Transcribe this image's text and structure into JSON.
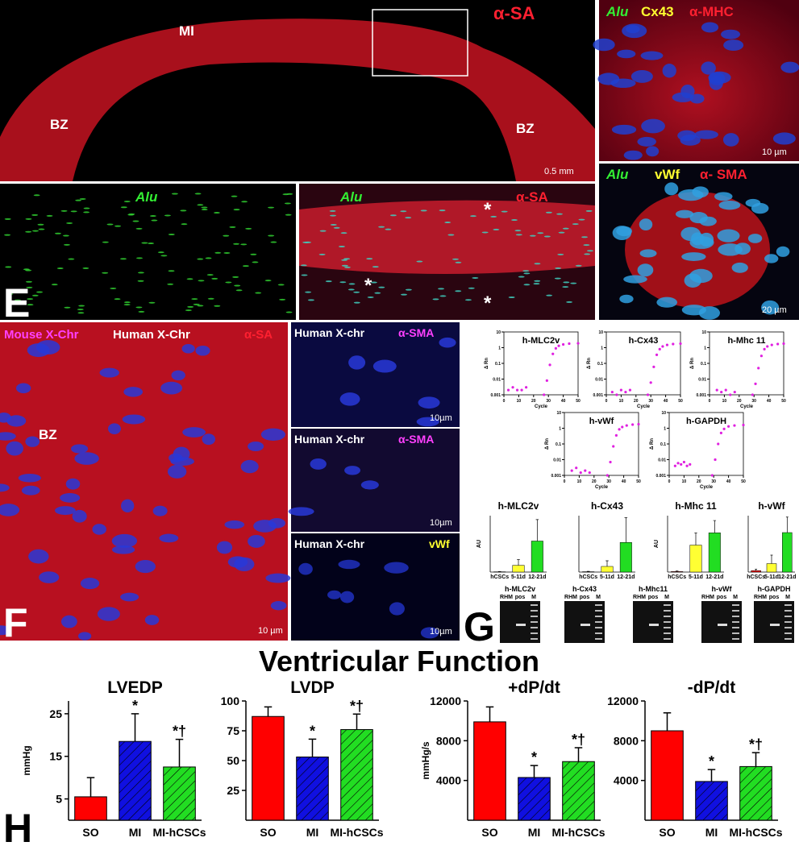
{
  "panel_labels": [
    "E",
    "F",
    "G",
    "H"
  ],
  "micrographs": {
    "overview": {
      "labels": [
        "MI",
        "BZ",
        "BZ"
      ],
      "stain": "α-SA",
      "scale": "0.5 mm"
    },
    "cx43": {
      "stains": [
        "Alu",
        "Cx43",
        "α-MHC"
      ],
      "scale": "10 µm"
    },
    "vwf": {
      "stains": [
        "Alu",
        "vWf",
        "α- SMA"
      ],
      "scale": "20 µm"
    },
    "alu": {
      "stains": [
        "Alu"
      ]
    },
    "alu_sa": {
      "stains": [
        "Alu",
        "α-SA"
      ],
      "asterisk": "*"
    },
    "xchr": {
      "stains": [
        "Mouse X-Chr",
        "Human X-Chr",
        "α-SA"
      ],
      "labels": [
        "BZ"
      ],
      "scale": "10 µm"
    },
    "sma1": {
      "stains": [
        "Human X-chr",
        "α-SMA"
      ],
      "scale": "10µm"
    },
    "sma2": {
      "stains": [
        "Human X-chr",
        "α-SMA"
      ],
      "scale": "10µm"
    },
    "vwf2": {
      "stains": [
        "Human X-chr",
        "vWf"
      ],
      "scale": "10µm"
    }
  },
  "gels": [
    {
      "title": "h-MLC2v",
      "lanes": [
        "RHM",
        "pos",
        "M"
      ]
    },
    {
      "title": "h-Cx43",
      "lanes": [
        "RHM",
        "pos",
        "M"
      ]
    },
    {
      "title": "h-Mhc11",
      "lanes": [
        "RHM",
        "pos",
        "M"
      ]
    },
    {
      "title": "h-vWf",
      "lanes": [
        "RHM",
        "pos",
        "M"
      ]
    },
    {
      "title": "h-GAPDH",
      "lanes": [
        "RHM",
        "pos",
        "M"
      ]
    }
  ],
  "title": "Ventricular Function",
  "chart_data": [
    {
      "type": "line",
      "title": "h-MLC2v",
      "xlabel": "Cycle",
      "ylabel": "Δ Rn",
      "log_y": true,
      "color": "#e020e0",
      "x": [
        3,
        6,
        9,
        12,
        15,
        27,
        29,
        31,
        33,
        35,
        37,
        40,
        44,
        50
      ],
      "values": [
        0.002,
        0.003,
        0.002,
        0.002,
        0.003,
        0.001,
        0.008,
        0.08,
        0.4,
        0.9,
        1.3,
        1.6,
        1.8,
        1.9
      ],
      "xlim": [
        0,
        50
      ],
      "ylim": [
        0.001,
        10
      ],
      "xticks": [
        0,
        10,
        20,
        30,
        40,
        50
      ],
      "yticks": [
        0.001,
        0.01,
        0.1,
        1,
        10
      ]
    },
    {
      "type": "line",
      "title": "h-Cx43",
      "xlabel": "Cycle",
      "ylabel": "Δ Rn",
      "log_y": true,
      "color": "#e020e0",
      "x": [
        4,
        7,
        10,
        13,
        16,
        28,
        30,
        32,
        34,
        36,
        38,
        41,
        45,
        50
      ],
      "values": [
        0.0015,
        0.001,
        0.002,
        0.0015,
        0.002,
        0.001,
        0.006,
        0.06,
        0.35,
        0.8,
        1.2,
        1.5,
        1.7,
        1.8
      ],
      "xlim": [
        0,
        50
      ],
      "ylim": [
        0.001,
        10
      ],
      "xticks": [
        0,
        10,
        20,
        30,
        40,
        50
      ],
      "yticks": [
        0.001,
        0.01,
        0.1,
        1,
        10
      ]
    },
    {
      "type": "line",
      "title": "h-Mhc 11",
      "xlabel": "Cycle",
      "ylabel": "Δ Rn",
      "log_y": true,
      "color": "#e020e0",
      "x": [
        5,
        8,
        11,
        14,
        17,
        29,
        31,
        33,
        35,
        37,
        39,
        42,
        46,
        50
      ],
      "values": [
        0.002,
        0.0015,
        0.002,
        0.001,
        0.0015,
        0.001,
        0.005,
        0.05,
        0.3,
        0.8,
        1.2,
        1.5,
        1.7,
        1.8
      ],
      "xlim": [
        0,
        50
      ],
      "ylim": [
        0.001,
        10
      ],
      "xticks": [
        0,
        10,
        20,
        30,
        40,
        50
      ],
      "yticks": [
        0.001,
        0.01,
        0.1,
        1,
        10
      ]
    },
    {
      "type": "line",
      "title": "h-vWf",
      "xlabel": "Cycle",
      "ylabel": "Δ Rn",
      "log_y": true,
      "color": "#e020e0",
      "x": [
        5,
        8,
        11,
        14,
        17,
        29,
        31,
        33,
        35,
        37,
        39,
        42,
        46,
        50
      ],
      "values": [
        0.002,
        0.003,
        0.0015,
        0.002,
        0.0015,
        0.001,
        0.007,
        0.07,
        0.35,
        0.85,
        1.2,
        1.5,
        1.7,
        1.8
      ],
      "xlim": [
        0,
        50
      ],
      "ylim": [
        0.001,
        10
      ],
      "xticks": [
        0,
        10,
        20,
        30,
        40,
        50
      ],
      "yticks": [
        0.001,
        0.01,
        0.1,
        1,
        10
      ]
    },
    {
      "type": "line",
      "title": "h-GAPDH",
      "xlabel": "Cycle",
      "ylabel": "Δ Rn",
      "log_y": true,
      "color": "#e020e0",
      "x": [
        4,
        6,
        8,
        10,
        12,
        14,
        29,
        31,
        33,
        35,
        37,
        40,
        44,
        50
      ],
      "values": [
        0.004,
        0.006,
        0.005,
        0.007,
        0.004,
        0.005,
        0.001,
        0.01,
        0.1,
        0.5,
        0.9,
        1.3,
        1.5,
        1.6
      ],
      "xlim": [
        0,
        50
      ],
      "ylim": [
        0.001,
        10
      ],
      "xticks": [
        0,
        10,
        20,
        30,
        40,
        50
      ],
      "yticks": [
        0.001,
        0.01,
        0.1,
        1,
        10
      ]
    },
    {
      "type": "bar",
      "title": "h-MLC2v",
      "ylabel": "AU",
      "categories": [
        "hCSCs",
        "5-11d",
        "12-21d"
      ],
      "values": [
        0.05,
        1.2,
        5.5
      ],
      "errors": [
        0.05,
        1.0,
        3.8
      ],
      "colors": [
        "#ff0000",
        "#ffff33",
        "#22dd22"
      ],
      "ylim": [
        0,
        10
      ]
    },
    {
      "type": "bar",
      "title": "h-Cx43",
      "categories": [
        "hCSCs",
        "5-11d",
        "12-21d"
      ],
      "values": [
        0.05,
        0.8,
        4.2
      ],
      "errors": [
        0.05,
        0.8,
        3.5
      ],
      "colors": [
        "#ff0000",
        "#ffff33",
        "#22dd22"
      ],
      "ylim": [
        0,
        8
      ]
    },
    {
      "type": "bar",
      "title": "h-Mhc 11",
      "ylabel": "AU",
      "categories": [
        "hCSCs",
        "5-11d",
        "12-21d"
      ],
      "values": [
        0.02,
        1.1,
        1.6
      ],
      "errors": [
        0.02,
        0.5,
        0.5
      ],
      "colors": [
        "#ff0000",
        "#ffff33",
        "#22dd22"
      ],
      "ylim": [
        0,
        2.3
      ]
    },
    {
      "type": "bar",
      "title": "h-vWf",
      "categories": [
        "hCSCs",
        "5-11d",
        "12-21d"
      ],
      "values": [
        0.05,
        0.3,
        1.4
      ],
      "errors": [
        0.05,
        0.3,
        0.55
      ],
      "colors": [
        "#ff0000",
        "#ffff33",
        "#22dd22"
      ],
      "ylim": [
        0,
        2
      ]
    },
    {
      "type": "bar",
      "title": "LVEDP",
      "ylabel": "mmHg",
      "categories": [
        "SO",
        "MI",
        "MI-hCSCs"
      ],
      "values": [
        5.5,
        18.5,
        12.5
      ],
      "errors": [
        4.5,
        6.5,
        6.5
      ],
      "bar_labels": [
        null,
        "*",
        "*†"
      ],
      "colors": [
        "#ff0000",
        "#1010e0",
        "#22dd22"
      ],
      "hatch": [
        false,
        true,
        true
      ],
      "ylim": [
        0,
        28
      ],
      "yticks": [
        5,
        15,
        25
      ]
    },
    {
      "type": "bar",
      "title": "LVDP",
      "categories": [
        "SO",
        "MI",
        "MI-hCSCs"
      ],
      "values": [
        87,
        53,
        76
      ],
      "errors": [
        8,
        15,
        13
      ],
      "bar_labels": [
        null,
        "*",
        "*†"
      ],
      "colors": [
        "#ff0000",
        "#1010e0",
        "#22dd22"
      ],
      "hatch": [
        false,
        true,
        true
      ],
      "ylim": [
        0,
        100
      ],
      "yticks": [
        25,
        50,
        75,
        100
      ]
    },
    {
      "type": "bar",
      "title": "+dP/dt",
      "ylabel": "mmHg/s",
      "categories": [
        "SO",
        "MI",
        "MI-hCSCs"
      ],
      "values": [
        9900,
        4300,
        5900
      ],
      "errors": [
        1500,
        1200,
        1400
      ],
      "bar_labels": [
        null,
        "*",
        "*†"
      ],
      "colors": [
        "#ff0000",
        "#1010e0",
        "#22dd22"
      ],
      "hatch": [
        false,
        true,
        true
      ],
      "ylim": [
        0,
        12000
      ],
      "yticks": [
        4000,
        8000,
        12000
      ]
    },
    {
      "type": "bar",
      "title": "-dP/dt",
      "categories": [
        "SO",
        "MI",
        "MI-hCSCs"
      ],
      "values": [
        9000,
        3900,
        5400
      ],
      "errors": [
        1800,
        1200,
        1400
      ],
      "bar_labels": [
        null,
        "*",
        "*†"
      ],
      "colors": [
        "#ff0000",
        "#1010e0",
        "#22dd22"
      ],
      "hatch": [
        false,
        true,
        true
      ],
      "ylim": [
        0,
        12000
      ],
      "yticks": [
        4000,
        8000,
        12000
      ]
    }
  ]
}
